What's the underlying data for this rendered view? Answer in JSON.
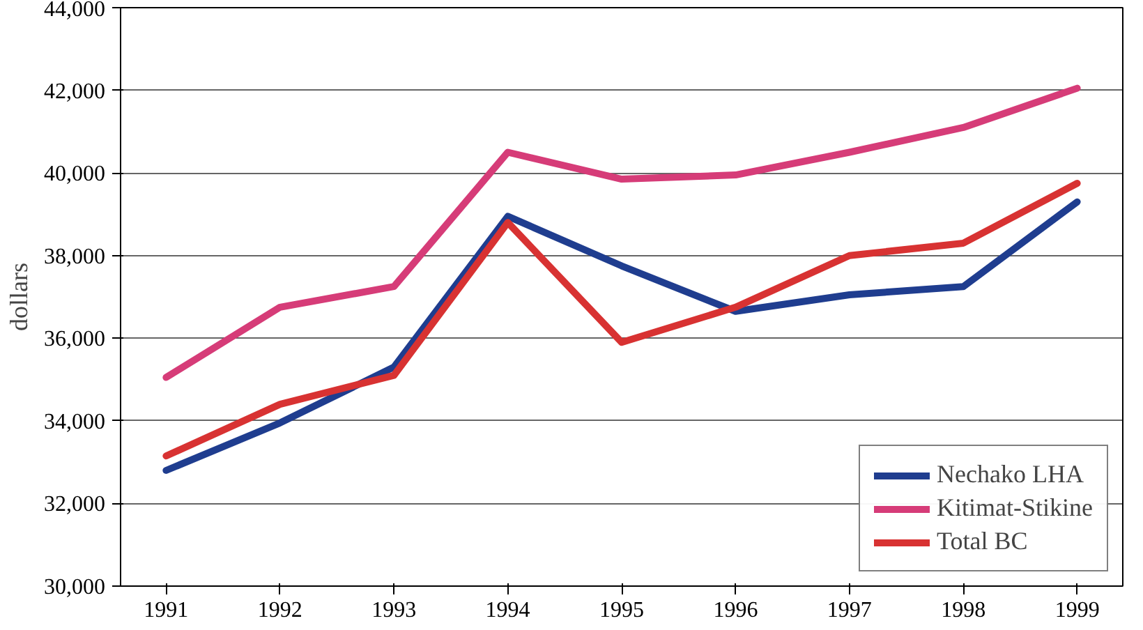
{
  "chart_data": {
    "type": "line",
    "ylabel": "dollars",
    "x": [
      1991,
      1992,
      1993,
      1994,
      1995,
      1996,
      1997,
      1998,
      1999
    ],
    "xlim": [
      1990.6,
      1999.4
    ],
    "xticks": [
      1991,
      1992,
      1993,
      1994,
      1995,
      1996,
      1997,
      1998,
      1999
    ],
    "ylim": [
      30000,
      44000
    ],
    "yticks": [
      {
        "value": 30000,
        "label": "30,000"
      },
      {
        "value": 32000,
        "label": "32,000"
      },
      {
        "value": 34000,
        "label": "34,000"
      },
      {
        "value": 36000,
        "label": "36,000"
      },
      {
        "value": 38000,
        "label": "38,000"
      },
      {
        "value": 40000,
        "label": "40,000"
      },
      {
        "value": 42000,
        "label": "42,000"
      },
      {
        "value": 44000,
        "label": "44,000"
      }
    ],
    "grid": "y",
    "legend": "bottom right",
    "marker": "none",
    "line_style": "solid",
    "series": [
      {
        "name": "Nechako LHA",
        "color": "#1f3d8f",
        "values": [
          32800,
          33950,
          35300,
          38950,
          37750,
          36650,
          37050,
          37250,
          39300
        ]
      },
      {
        "name": "Kitimat-Stikine",
        "color": "#d63c78",
        "values": [
          35050,
          36750,
          37250,
          40500,
          39850,
          39950,
          40500,
          41100,
          42050
        ]
      },
      {
        "name": "Total BC",
        "color": "#d83232",
        "values": [
          33150,
          34400,
          35100,
          38800,
          35900,
          36750,
          38000,
          38300,
          39750
        ]
      }
    ]
  }
}
